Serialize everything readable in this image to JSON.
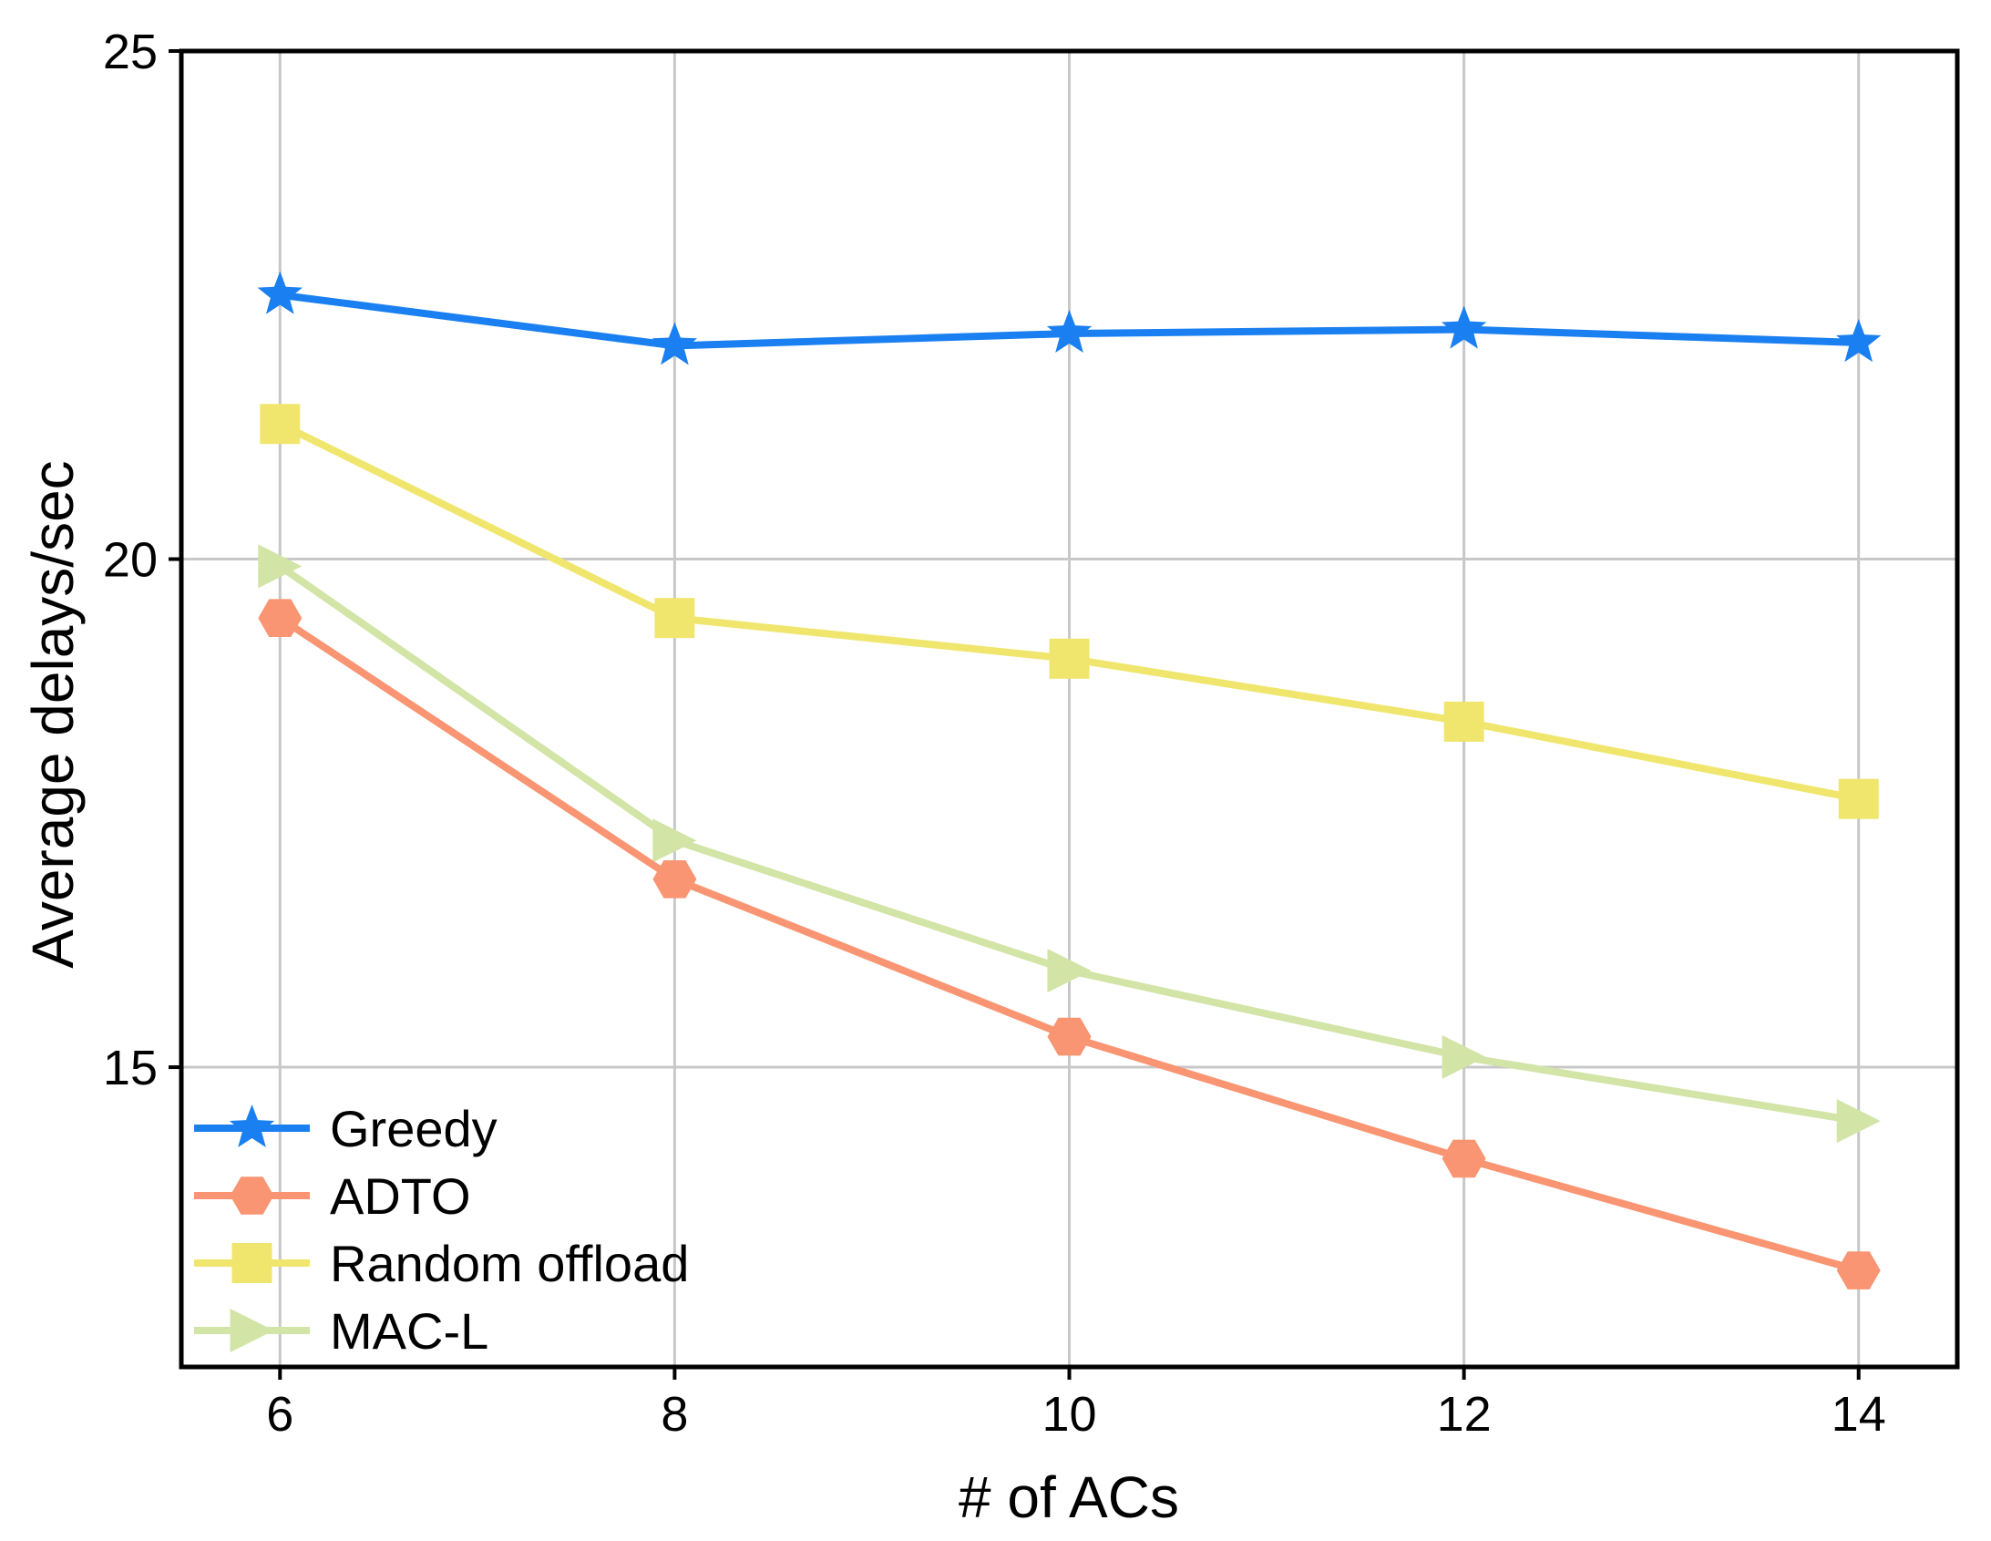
{
  "chart_data": {
    "type": "line",
    "title": "",
    "xlabel": "# of ACs",
    "ylabel": "Average delays/sec",
    "x": [
      6,
      8,
      10,
      12,
      14
    ],
    "x_ticks": [
      "6",
      "8",
      "10",
      "12",
      "14"
    ],
    "y_ticks": [
      "15",
      "20",
      "25"
    ],
    "xlim": [
      5.5,
      14.5
    ],
    "ylim": [
      12.05,
      25
    ],
    "grid": true,
    "legend_position": "bottom-left",
    "series": [
      {
        "name": "Greedy",
        "values": [
          22.6,
          22.1,
          22.22,
          22.26,
          22.13
        ],
        "color": "#1a7ff0",
        "marker": "star"
      },
      {
        "name": "ADTO",
        "values": [
          19.42,
          16.85,
          15.3,
          14.1,
          13.0
        ],
        "color": "#f99572",
        "marker": "hexagon"
      },
      {
        "name": "Random offload",
        "values": [
          21.33,
          19.42,
          19.02,
          18.4,
          17.64
        ],
        "color": "#f0e66e",
        "marker": "square"
      },
      {
        "name": "MAC-L",
        "values": [
          19.93,
          17.23,
          15.95,
          15.1,
          14.47
        ],
        "color": "#d2e4a6",
        "marker": "triangle-right"
      }
    ]
  }
}
